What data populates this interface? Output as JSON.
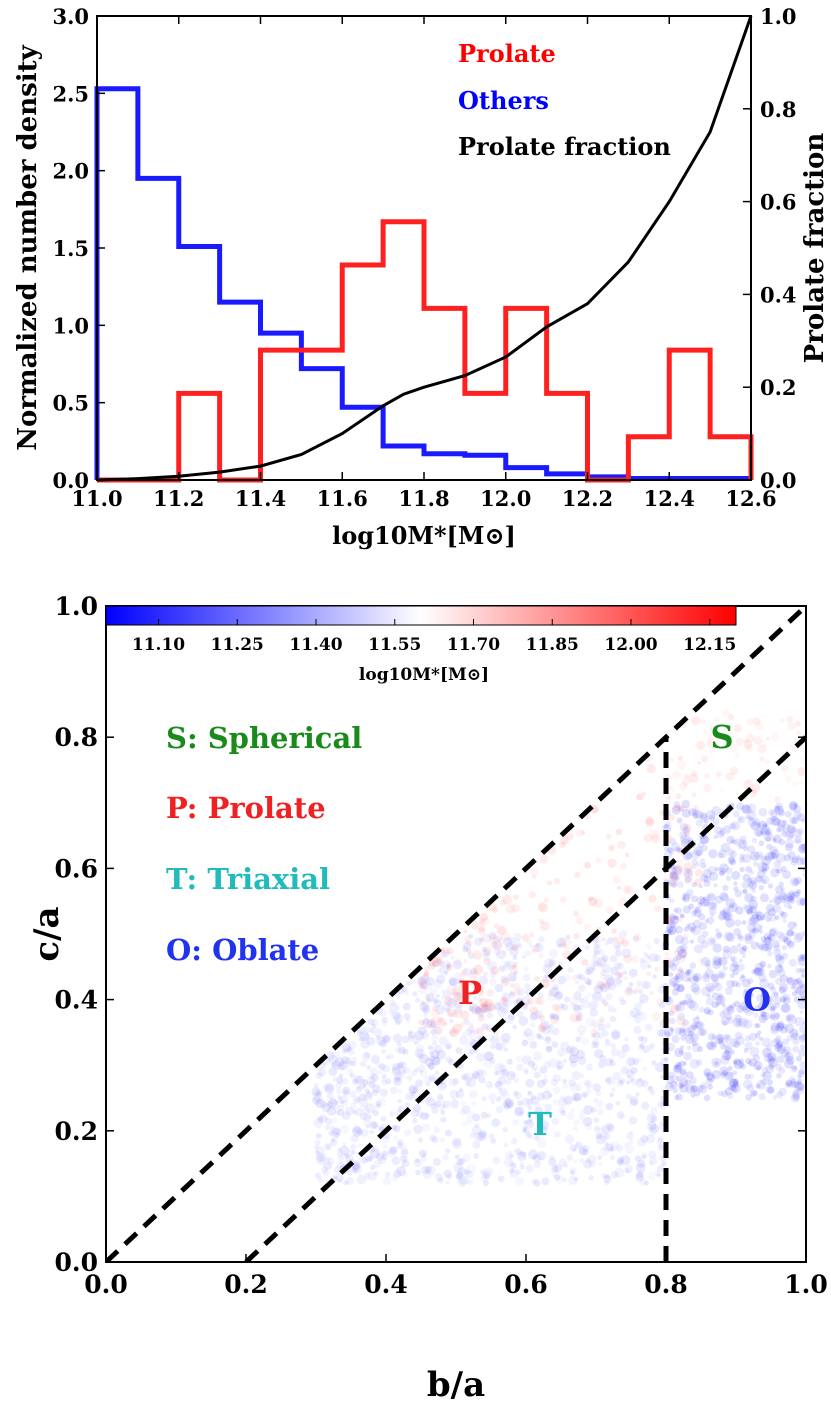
{
  "chart_data": [
    {
      "type": "histogram",
      "xlabel": "log10M*[M⊙]",
      "ylabel": "Normalized number density",
      "y2label": "Prolate fraction",
      "xlim": [
        11.0,
        12.6
      ],
      "ylim": [
        0.0,
        3.0
      ],
      "y2lim": [
        0.0,
        1.0
      ],
      "xticks": [
        11.0,
        11.2,
        11.4,
        11.6,
        11.8,
        12.0,
        12.2,
        12.4,
        12.6
      ],
      "xtick_labels": [
        "11.0",
        "11.2",
        "11.4",
        "11.6",
        "11.8",
        "12.0",
        "12.2",
        "12.4",
        "12.6"
      ],
      "yticks": [
        0.0,
        0.5,
        1.0,
        1.5,
        2.0,
        2.5,
        3.0
      ],
      "ytick_labels": [
        "0.0",
        "0.5",
        "1.0",
        "1.5",
        "2.0",
        "2.5",
        "3.0"
      ],
      "y2ticks": [
        0.0,
        0.2,
        0.4,
        0.6,
        0.8,
        1.0
      ],
      "y2tick_labels": [
        "0.0",
        "0.2",
        "0.4",
        "0.6",
        "0.8",
        "1.0"
      ],
      "bin_edges": [
        11.0,
        11.1,
        11.2,
        11.3,
        11.4,
        11.5,
        11.6,
        11.7,
        11.8,
        11.9,
        12.0,
        12.1,
        12.2,
        12.3,
        12.4,
        12.5,
        12.6
      ],
      "legend": [
        {
          "label": "Prolate",
          "color": "#ff0000"
        },
        {
          "label": "Others",
          "color": "#0000ff"
        },
        {
          "label": "Prolate fraction",
          "color": "#000000"
        }
      ],
      "series": [
        {
          "name": "Prolate",
          "color": "#ff2020",
          "values": [
            0.0,
            0.0,
            0.56,
            0.0,
            0.84,
            0.84,
            1.39,
            1.67,
            1.11,
            0.56,
            1.11,
            0.56,
            0.0,
            0.28,
            0.84,
            0.28
          ]
        },
        {
          "name": "Others",
          "color": "#1a1aff",
          "values": [
            2.53,
            1.95,
            1.51,
            1.15,
            0.95,
            0.72,
            0.47,
            0.22,
            0.17,
            0.16,
            0.08,
            0.04,
            0.02,
            0.01,
            0.01,
            0.01
          ]
        },
        {
          "name": "Prolate fraction",
          "color": "#000000",
          "axis": "right",
          "x": [
            11.0,
            11.1,
            11.2,
            11.3,
            11.4,
            11.5,
            11.6,
            11.7,
            11.75,
            11.8,
            11.9,
            12.0,
            12.1,
            12.2,
            12.3,
            12.4,
            12.5,
            12.6
          ],
          "y": [
            0.0,
            0.003,
            0.008,
            0.017,
            0.03,
            0.055,
            0.1,
            0.16,
            0.185,
            0.2,
            0.225,
            0.265,
            0.33,
            0.38,
            0.47,
            0.6,
            0.75,
            1.0
          ]
        }
      ]
    },
    {
      "type": "scatter",
      "xlabel": "b/a",
      "ylabel": "c/a",
      "xlim": [
        0.0,
        1.0
      ],
      "ylim": [
        0.0,
        1.0
      ],
      "xticks": [
        0.0,
        0.2,
        0.4,
        0.6,
        0.8,
        1.0
      ],
      "xtick_labels": [
        "0.0",
        "0.2",
        "0.4",
        "0.6",
        "0.8",
        "1.0"
      ],
      "yticks": [
        0.0,
        0.2,
        0.4,
        0.6,
        0.8,
        1.0
      ],
      "ytick_labels": [
        "0.0",
        "0.2",
        "0.4",
        "0.6",
        "0.8",
        "1.0"
      ],
      "colorbar": {
        "label": "log10M*[M⊙]",
        "range": [
          11.0,
          12.2
        ],
        "ticks": [
          11.1,
          11.25,
          11.4,
          11.55,
          11.7,
          11.85,
          12.0,
          12.15
        ],
        "tick_labels": [
          "11.10",
          "11.25",
          "11.40",
          "11.55",
          "11.70",
          "11.85",
          "12.00",
          "12.15"
        ],
        "colors": [
          "#0000ff",
          "#ffffff",
          "#ff0000"
        ]
      },
      "dividing_lines": [
        {
          "x": [
            0.0,
            1.0
          ],
          "y": [
            0.0,
            1.0
          ]
        },
        {
          "x": [
            0.2,
            1.0
          ],
          "y": [
            0.0,
            0.8
          ]
        },
        {
          "x": [
            0.8,
            0.8
          ],
          "y": [
            0.0,
            0.8
          ]
        }
      ],
      "legend": [
        {
          "label": "S: Spherical",
          "color": "#1a8a1a"
        },
        {
          "label": "P: Prolate",
          "color": "#ee2222"
        },
        {
          "label": "T: Triaxial",
          "color": "#22bbbb"
        },
        {
          "label": "O: Oblate",
          "color": "#2233ee"
        }
      ],
      "region_labels": [
        {
          "text": "S",
          "b": 0.88,
          "c": 0.8,
          "color": "#1a8a1a"
        },
        {
          "text": "P",
          "b": 0.52,
          "c": 0.41,
          "color": "#ee2222"
        },
        {
          "text": "T",
          "b": 0.62,
          "c": 0.21,
          "color": "#22bbbb"
        },
        {
          "text": "O",
          "b": 0.93,
          "c": 0.4,
          "color": "#2233ee"
        }
      ],
      "point_clouds": [
        {
          "name": "oblate-cluster",
          "b_range": [
            0.8,
            1.0
          ],
          "c_range": [
            0.25,
            0.7
          ],
          "mass": 11.15,
          "count": 900
        },
        {
          "name": "triaxial-band",
          "b_range": [
            0.3,
            0.8
          ],
          "c_range": [
            0.12,
            0.5
          ],
          "mass": 11.35,
          "count": 1200
        },
        {
          "name": "prolate-streaks",
          "b_range": [
            0.45,
            0.85
          ],
          "c_range": [
            0.35,
            0.78
          ],
          "mass": 11.9,
          "count": 260
        },
        {
          "name": "spherical-tracks",
          "b_range": [
            0.8,
            1.0
          ],
          "c_range": [
            0.7,
            0.84
          ],
          "mass": 11.8,
          "count": 70
        }
      ]
    }
  ]
}
